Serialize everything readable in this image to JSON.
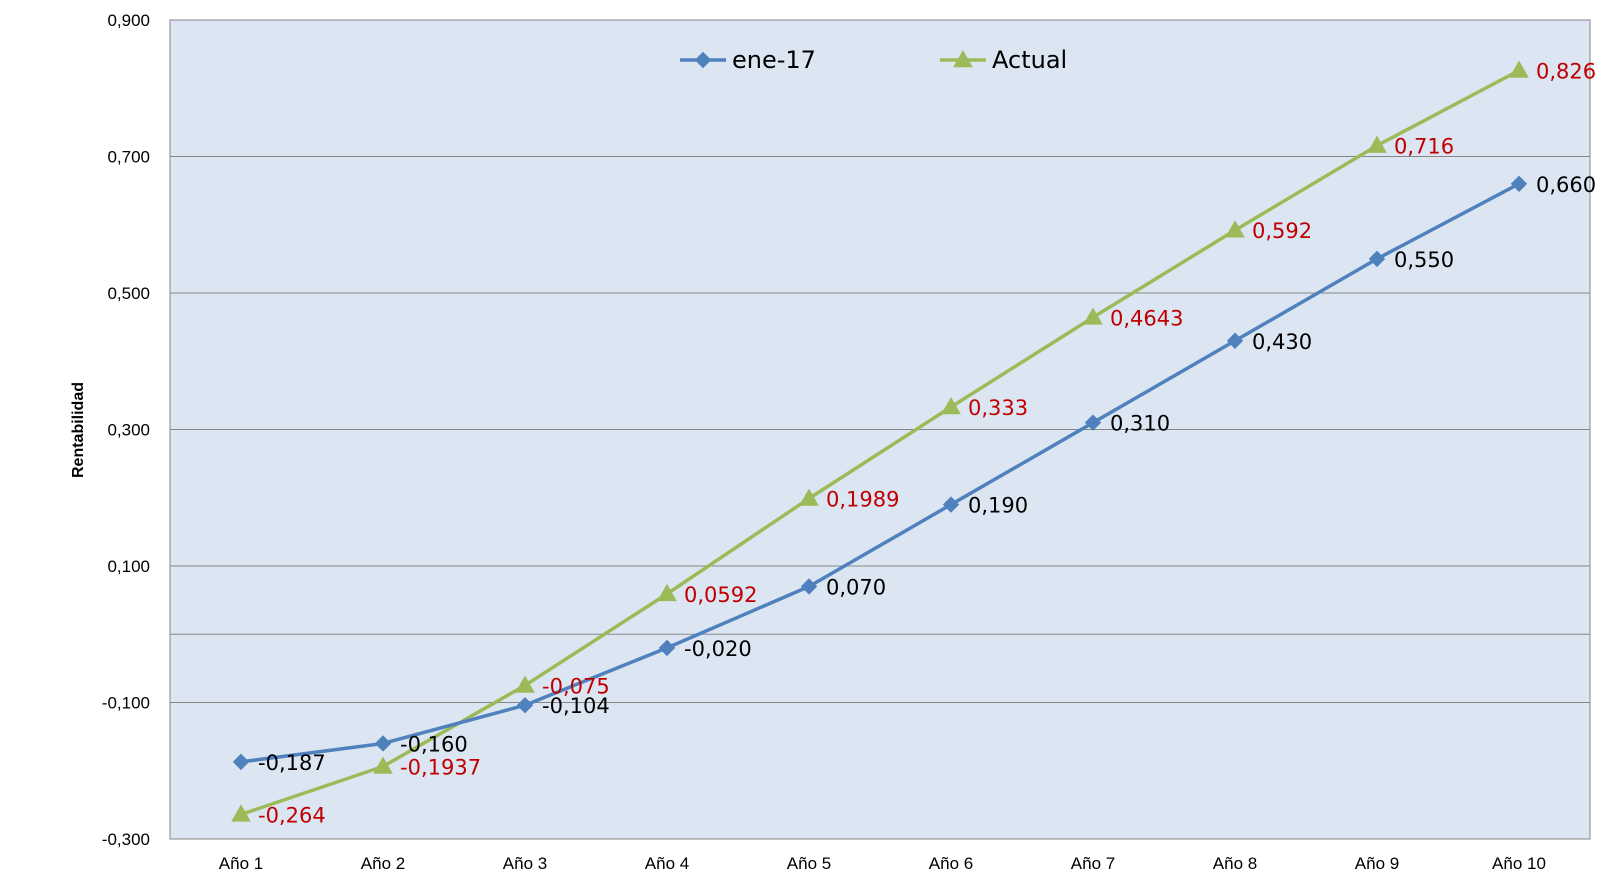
{
  "chart_data": {
    "type": "line",
    "title": "",
    "xlabel": "",
    "ylabel": "Rentabilidad",
    "categories": [
      "Año 1",
      "Año 2",
      "Año 3",
      "Año 4",
      "Año 5",
      "Año 6",
      "Año 7",
      "Año 8",
      "Año 9",
      "Año 10"
    ],
    "ylim": [
      -0.3,
      0.9
    ],
    "yticks": [
      -0.3,
      -0.1,
      0.1,
      0.3,
      0.5,
      0.7,
      0.9
    ],
    "ytick_labels": [
      "-0,300",
      "-0,100",
      "0,100",
      "0,300",
      "0,500",
      "0,700",
      "0,900"
    ],
    "grid": true,
    "legend_position": "top",
    "series": [
      {
        "name": "ene-17",
        "color": "#4f81bd",
        "marker": "diamond",
        "label_color": "#000000",
        "values": [
          -0.187,
          -0.16,
          -0.104,
          -0.02,
          0.07,
          0.19,
          0.31,
          0.43,
          0.55,
          0.66
        ],
        "labels": [
          "-0,187",
          "-0,160",
          "-0,104",
          "-0,020",
          "0,070",
          "0,190",
          "0,310",
          "0,430",
          "0,550",
          "0,660"
        ]
      },
      {
        "name": "Actual",
        "color": "#9bbb59",
        "marker": "triangle",
        "label_color": "#c00000",
        "values": [
          -0.264,
          -0.1937,
          -0.075,
          0.0592,
          0.1989,
          0.333,
          0.4643,
          0.592,
          0.716,
          0.826
        ],
        "labels": [
          "-0,264",
          "-0,1937",
          "-0,075",
          "0,0592",
          "0,1989",
          "0,333",
          "0,4643",
          "0,592",
          "0,716",
          "0,826"
        ]
      }
    ]
  }
}
